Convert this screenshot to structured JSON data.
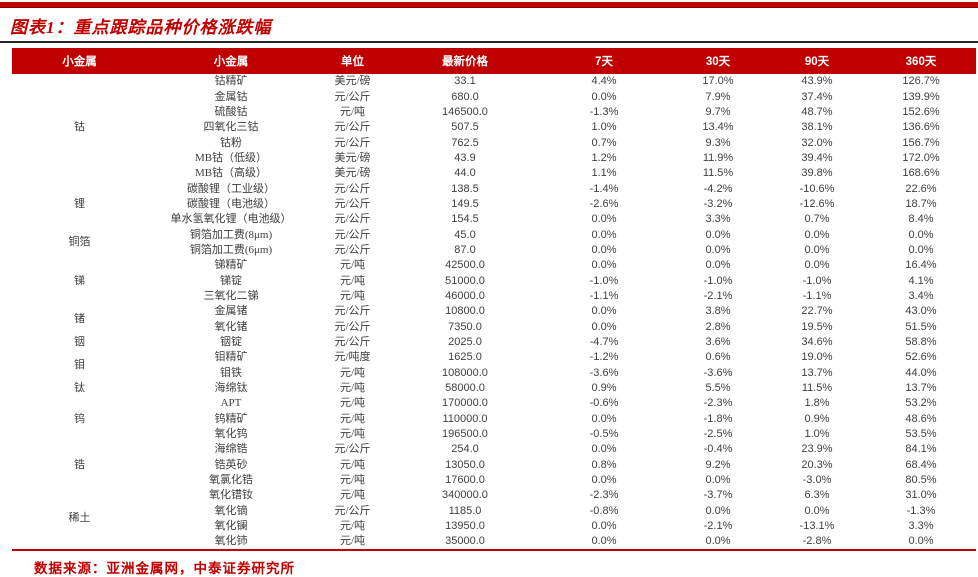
{
  "title": "图表1：重点跟踪品种价格涨跌幅",
  "source": "数据来源：亚洲金属网，中泰证券研究所",
  "colors": {
    "accent_red": "#C00000",
    "body_text": "#3F3F3F",
    "header_text": "#FFFFFF",
    "title_rule": "#262626"
  },
  "chart_data": {
    "type": "table",
    "title": "重点跟踪品种价格涨跌幅",
    "columns": [
      "小金属",
      "小金属",
      "单位",
      "最新价格",
      "7天",
      "30天",
      "90天",
      "360天"
    ],
    "groups": [
      {
        "category": "钴",
        "rows": [
          [
            "钴精矿",
            "美元/磅",
            "33.1",
            "4.4%",
            "17.0%",
            "43.9%",
            "126.7%"
          ],
          [
            "金属钴",
            "元/公斤",
            "680.0",
            "0.0%",
            "7.9%",
            "37.4%",
            "139.9%"
          ],
          [
            "硫酸钴",
            "元/吨",
            "146500.0",
            "-1.3%",
            "9.7%",
            "48.7%",
            "152.6%"
          ],
          [
            "四氧化三钴",
            "元/公斤",
            "507.5",
            "1.0%",
            "13.4%",
            "38.1%",
            "136.6%"
          ],
          [
            "钴粉",
            "元/公斤",
            "762.5",
            "0.7%",
            "9.3%",
            "32.0%",
            "156.7%"
          ],
          [
            "MB钴（低级）",
            "美元/磅",
            "43.9",
            "1.2%",
            "11.9%",
            "39.4%",
            "172.0%"
          ],
          [
            "MB钴（高级）",
            "美元/磅",
            "44.0",
            "1.1%",
            "11.5%",
            "39.8%",
            "168.6%"
          ]
        ]
      },
      {
        "category": "锂",
        "rows": [
          [
            "碳酸锂（工业级）",
            "元/公斤",
            "138.5",
            "-1.4%",
            "-4.2%",
            "-10.6%",
            "22.6%"
          ],
          [
            "碳酸锂（电池级）",
            "元/公斤",
            "149.5",
            "-2.6%",
            "-3.2%",
            "-12.6%",
            "18.7%"
          ],
          [
            "单水氢氧化锂（电池级）",
            "元/公斤",
            "154.5",
            "0.0%",
            "3.3%",
            "0.7%",
            "8.4%"
          ]
        ]
      },
      {
        "category": "铜箔",
        "rows": [
          [
            "铜箔加工费(8μm)",
            "元/公斤",
            "45.0",
            "0.0%",
            "0.0%",
            "0.0%",
            "0.0%"
          ],
          [
            "铜箔加工费(6μm)",
            "元/公斤",
            "87.0",
            "0.0%",
            "0.0%",
            "0.0%",
            "0.0%"
          ]
        ]
      },
      {
        "category": "锑",
        "rows": [
          [
            "锑精矿",
            "元/吨",
            "42500.0",
            "0.0%",
            "0.0%",
            "0.0%",
            "16.4%"
          ],
          [
            "锑锭",
            "元/吨",
            "51000.0",
            "-1.0%",
            "-1.0%",
            "-1.0%",
            "4.1%"
          ],
          [
            "三氧化二锑",
            "元/吨",
            "46000.0",
            "-1.1%",
            "-2.1%",
            "-1.1%",
            "3.4%"
          ]
        ]
      },
      {
        "category": "锗",
        "rows": [
          [
            "金属锗",
            "元/公斤",
            "10800.0",
            "0.0%",
            "3.8%",
            "22.7%",
            "43.0%"
          ],
          [
            "氧化锗",
            "元/公斤",
            "7350.0",
            "0.0%",
            "2.8%",
            "19.5%",
            "51.5%"
          ]
        ]
      },
      {
        "category": "铟",
        "rows": [
          [
            "铟锭",
            "元/公斤",
            "2025.0",
            "-4.7%",
            "3.6%",
            "34.6%",
            "58.8%"
          ]
        ]
      },
      {
        "category": "钼",
        "rows": [
          [
            "钼精矿",
            "元/吨度",
            "1625.0",
            "-1.2%",
            "0.6%",
            "19.0%",
            "52.6%"
          ],
          [
            "钼铁",
            "元/吨",
            "108000.0",
            "-3.6%",
            "-3.6%",
            "13.7%",
            "44.0%"
          ]
        ]
      },
      {
        "category": "钛",
        "rows": [
          [
            "海绵钛",
            "元/吨",
            "58000.0",
            "0.9%",
            "5.5%",
            "11.5%",
            "13.7%"
          ]
        ]
      },
      {
        "category": "钨",
        "rows": [
          [
            "APT",
            "元/吨",
            "170000.0",
            "-0.6%",
            "-2.3%",
            "1.8%",
            "53.2%"
          ],
          [
            "钨精矿",
            "元/吨",
            "110000.0",
            "0.0%",
            "-1.8%",
            "0.9%",
            "48.6%"
          ],
          [
            "氧化钨",
            "元/吨",
            "196500.0",
            "-0.5%",
            "-2.5%",
            "1.0%",
            "53.5%"
          ]
        ]
      },
      {
        "category": "锆",
        "rows": [
          [
            "海绵锆",
            "元/公斤",
            "254.0",
            "0.0%",
            "-0.4%",
            "23.9%",
            "84.1%"
          ],
          [
            "锆英砂",
            "元/吨",
            "13050.0",
            "0.8%",
            "9.2%",
            "20.3%",
            "68.4%"
          ],
          [
            "氧氯化锆",
            "元/吨",
            "17600.0",
            "0.0%",
            "0.0%",
            "-3.0%",
            "80.5%"
          ]
        ]
      },
      {
        "category": "稀土",
        "rows": [
          [
            "氧化镨钕",
            "元/吨",
            "340000.0",
            "-2.3%",
            "-3.7%",
            "6.3%",
            "31.0%"
          ],
          [
            "氧化镝",
            "元/公斤",
            "1185.0",
            "-0.8%",
            "0.0%",
            "0.0%",
            "-1.3%"
          ],
          [
            "氧化镧",
            "元/吨",
            "13950.0",
            "0.0%",
            "-2.1%",
            "-13.1%",
            "3.3%"
          ],
          [
            "氧化铈",
            "元/吨",
            "35000.0",
            "0.0%",
            "0.0%",
            "-2.8%",
            "0.0%"
          ]
        ]
      }
    ]
  }
}
